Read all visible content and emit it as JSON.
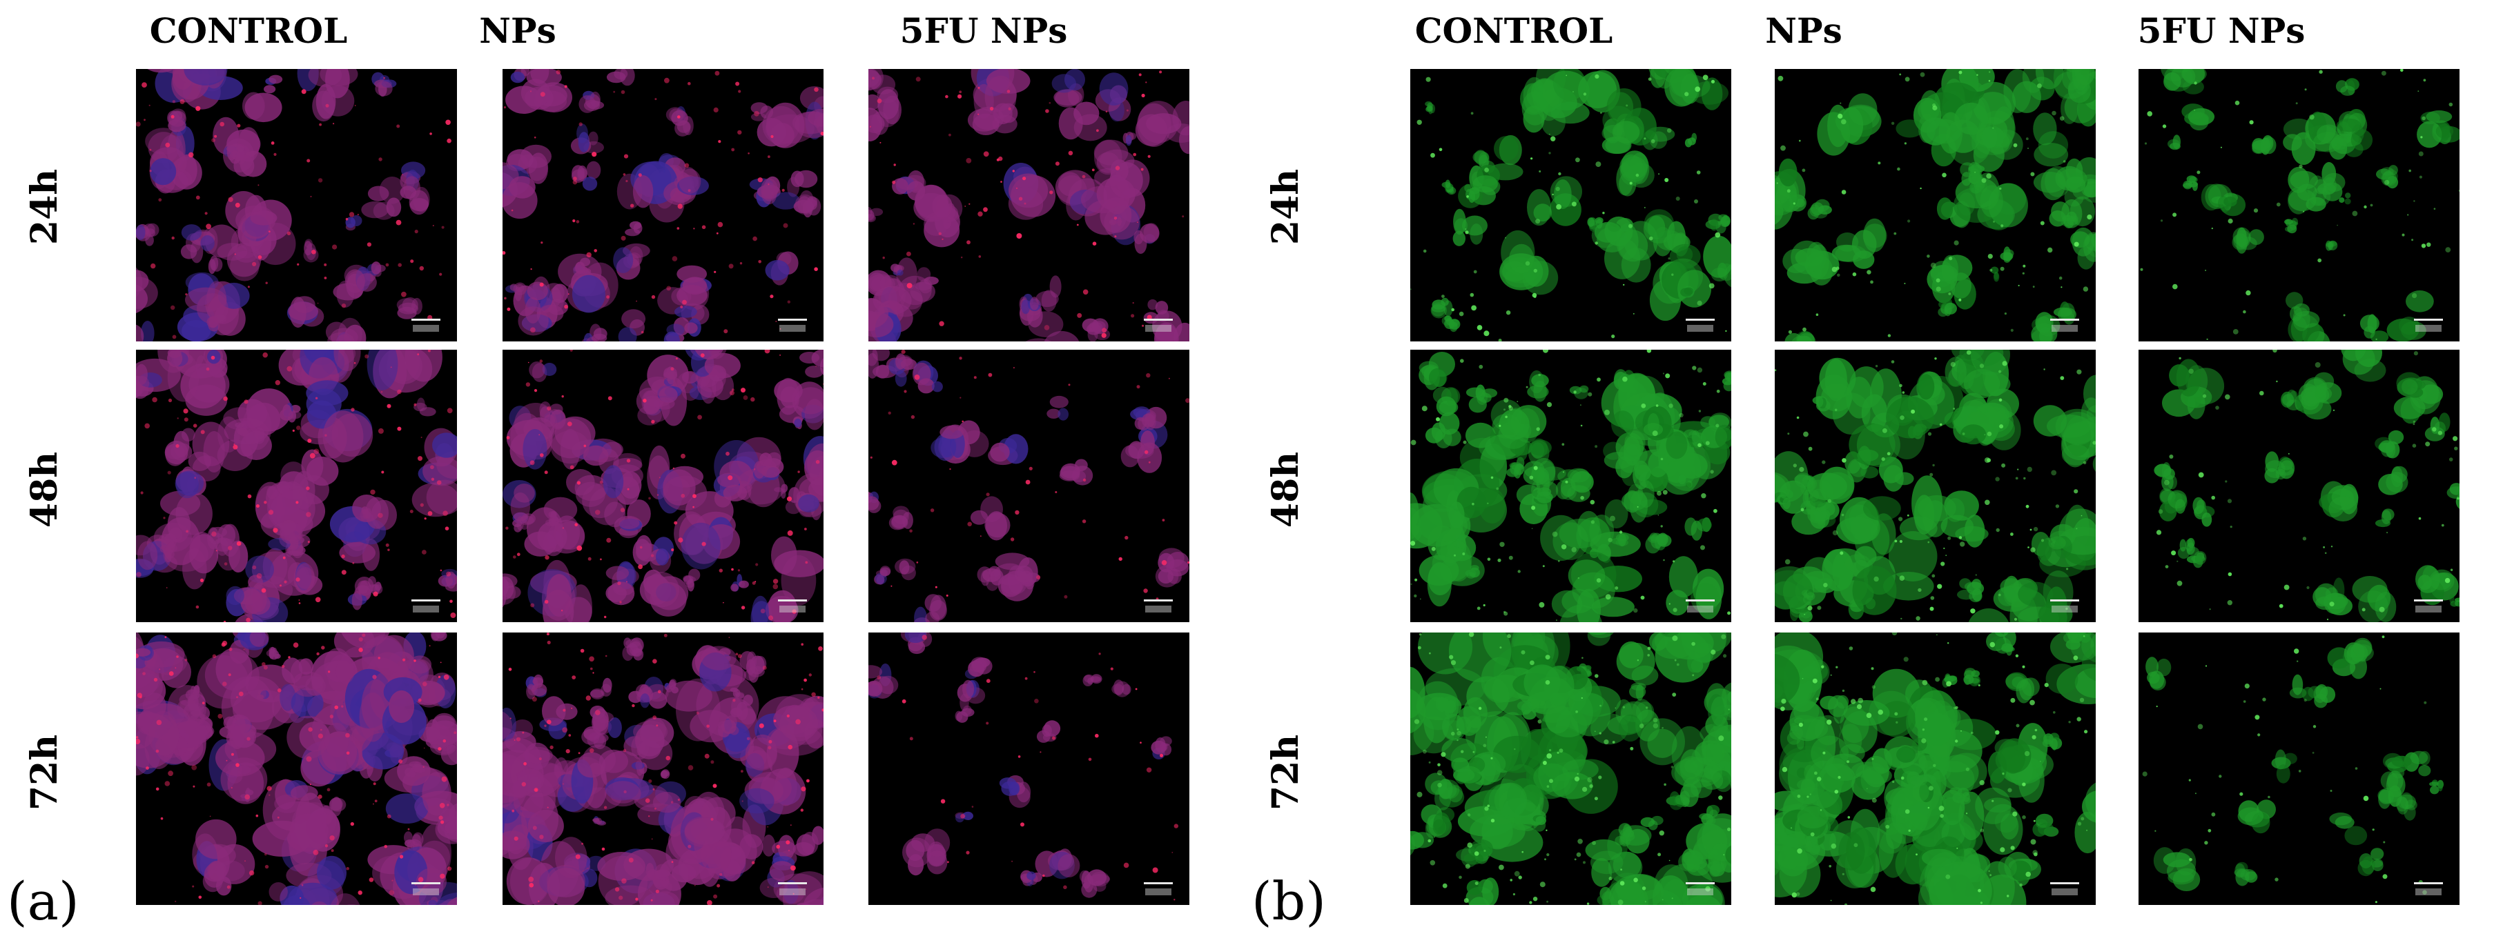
{
  "panels": [
    {
      "label": "(a)",
      "stain": "red-blue",
      "columns": [
        "CONTROL",
        "NPs",
        "5FU NPs"
      ],
      "rows": [
        "24h",
        "48h",
        "72h"
      ],
      "colors": {
        "cell": "#8a2a7a",
        "bright": "#ff2a66",
        "nucleus": "#3d2a9a",
        "background": "#000000"
      },
      "density": [
        [
          0.45,
          0.5,
          0.45
        ],
        [
          0.65,
          0.6,
          0.22
        ],
        [
          0.85,
          0.82,
          0.12
        ]
      ]
    },
    {
      "label": "(b)",
      "stain": "green",
      "columns": [
        "CONTROL",
        "NPs",
        "5FU NPs"
      ],
      "rows": [
        "24h",
        "48h",
        "72h"
      ],
      "colors": {
        "cell": "#1f9a2a",
        "bright": "#5fe85a",
        "nucleus": "#127a1c",
        "background": "#000000"
      },
      "density": [
        [
          0.45,
          0.48,
          0.3
        ],
        [
          0.7,
          0.65,
          0.28
        ],
        [
          0.92,
          0.85,
          0.15
        ]
      ]
    }
  ]
}
